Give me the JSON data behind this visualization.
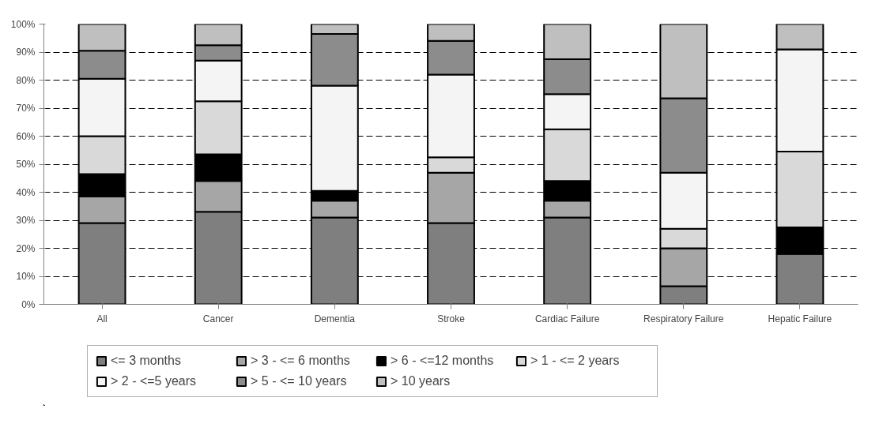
{
  "chart_data": {
    "type": "bar",
    "stacked": true,
    "categories": [
      "All",
      "Cancer",
      "Dementia",
      "Stroke",
      "Cardiac Failure",
      "Respiratory Failure",
      "Hepatic Failure"
    ],
    "series": [
      {
        "name": "<= 3 months",
        "color": "#7f7f7f",
        "values": [
          29,
          33,
          31,
          29,
          31,
          6.5,
          18
        ]
      },
      {
        "name": "> 3 - <= 6 months",
        "color": "#a6a6a6",
        "values": [
          9.5,
          11,
          6,
          18,
          6,
          13.5,
          0
        ]
      },
      {
        "name": "> 6 - <=12 months",
        "color": "#000000",
        "values": [
          8,
          9.5,
          3.5,
          0,
          7,
          0,
          9.5
        ]
      },
      {
        "name": "> 1 - <= 2 years",
        "color": "#d9d9d9",
        "values": [
          13.5,
          19,
          0,
          5.5,
          18.5,
          7,
          27
        ]
      },
      {
        "name": "> 2 - <=5 years",
        "color": "#f4f4f4",
        "values": [
          20.5,
          14.5,
          37.5,
          29.5,
          12.5,
          20,
          36.5
        ]
      },
      {
        "name": "> 5 - <= 10 years",
        "color": "#8c8c8c",
        "values": [
          10,
          5.5,
          18.5,
          12,
          12.5,
          26.5,
          0
        ]
      },
      {
        "name": "> 10 years",
        "color": "#bfbfbf",
        "values": [
          9.5,
          7.5,
          3.5,
          6,
          12.5,
          26.5,
          9
        ]
      }
    ],
    "ylim": [
      0,
      100
    ],
    "yticks": [
      {
        "value": 0,
        "label": "0%"
      },
      {
        "value": 10,
        "label": "10%"
      },
      {
        "value": 20,
        "label": "20%"
      },
      {
        "value": 30,
        "label": "30%"
      },
      {
        "value": 40,
        "label": "40%"
      },
      {
        "value": 50,
        "label": "50%"
      },
      {
        "value": 60,
        "label": "60%"
      },
      {
        "value": 70,
        "label": "70%"
      },
      {
        "value": 80,
        "label": "80%"
      },
      {
        "value": 90,
        "label": "90%"
      },
      {
        "value": 100,
        "label": "100%"
      }
    ],
    "grid": "y",
    "legend": "bottom"
  }
}
